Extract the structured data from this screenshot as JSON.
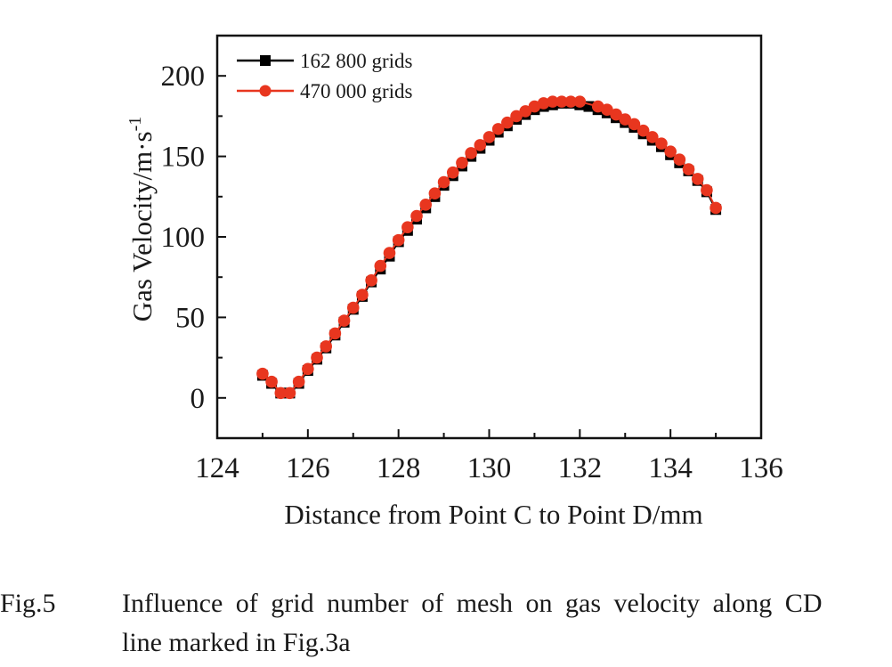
{
  "chart_data": {
    "type": "line",
    "title": "",
    "xlabel": "Distance from Point C to Point D/mm",
    "ylabel": "Gas Velocity/m·s",
    "ylabel_superscript": "-1",
    "xlim": [
      124,
      136
    ],
    "ylim": [
      -25,
      225
    ],
    "xticks": [
      124,
      126,
      128,
      130,
      132,
      134,
      136
    ],
    "yticks": [
      0,
      50,
      100,
      150,
      200
    ],
    "legend_position": "top-left",
    "grid": false,
    "series": [
      {
        "name": "162 800 grids",
        "color": "#000000",
        "marker": "square",
        "x": [
          125.0,
          125.2,
          125.4,
          125.6,
          125.8,
          126.0,
          126.2,
          126.4,
          126.6,
          126.8,
          127.0,
          127.2,
          127.4,
          127.6,
          127.8,
          128.0,
          128.2,
          128.4,
          128.6,
          128.8,
          129.0,
          129.2,
          129.4,
          129.6,
          129.8,
          130.0,
          130.2,
          130.4,
          130.6,
          130.8,
          131.0,
          131.2,
          131.4,
          131.6,
          131.8,
          132.0,
          132.2,
          132.4,
          132.6,
          132.8,
          133.0,
          133.2,
          133.4,
          133.6,
          133.8,
          134.0,
          134.2,
          134.4,
          134.6,
          134.8,
          135.0
        ],
        "y": [
          14,
          9,
          3,
          3,
          9,
          17,
          24,
          31,
          39,
          47,
          55,
          63,
          72,
          80,
          88,
          97,
          104,
          111,
          118,
          125,
          132,
          138,
          144,
          150,
          155,
          160,
          165,
          169,
          173,
          176,
          179,
          181,
          182,
          183,
          183,
          182,
          181,
          179,
          177,
          174,
          171,
          168,
          164,
          160,
          156,
          151,
          146,
          141,
          135,
          128,
          117
        ]
      },
      {
        "name": "470 000 grids",
        "color": "#e8361f",
        "marker": "circle",
        "x": [
          125.0,
          125.2,
          125.4,
          125.6,
          125.8,
          126.0,
          126.2,
          126.4,
          126.6,
          126.8,
          127.0,
          127.2,
          127.4,
          127.6,
          127.8,
          128.0,
          128.2,
          128.4,
          128.6,
          128.8,
          129.0,
          129.2,
          129.4,
          129.6,
          129.8,
          130.0,
          130.2,
          130.4,
          130.6,
          130.8,
          131.0,
          131.2,
          131.4,
          131.6,
          131.8,
          132.0,
          132.4,
          132.6,
          132.8,
          133.0,
          133.2,
          133.4,
          133.6,
          133.8,
          134.0,
          134.2,
          134.4,
          134.6,
          134.8,
          135.0
        ],
        "y": [
          15,
          10,
          3,
          3,
          10,
          18,
          25,
          32,
          40,
          48,
          56,
          64,
          73,
          82,
          90,
          98,
          106,
          113,
          120,
          127,
          134,
          140,
          146,
          152,
          157,
          162,
          167,
          171,
          175,
          178,
          181,
          183,
          184,
          184,
          184,
          184,
          181,
          179,
          176,
          173,
          170,
          166,
          162,
          158,
          153,
          148,
          142,
          136,
          129,
          118
        ]
      }
    ]
  },
  "caption": {
    "figure_label": "Fig.5",
    "line1": "Influence of grid number of mesh on gas velocity along CD",
    "line2": "line marked in Fig.3a"
  }
}
